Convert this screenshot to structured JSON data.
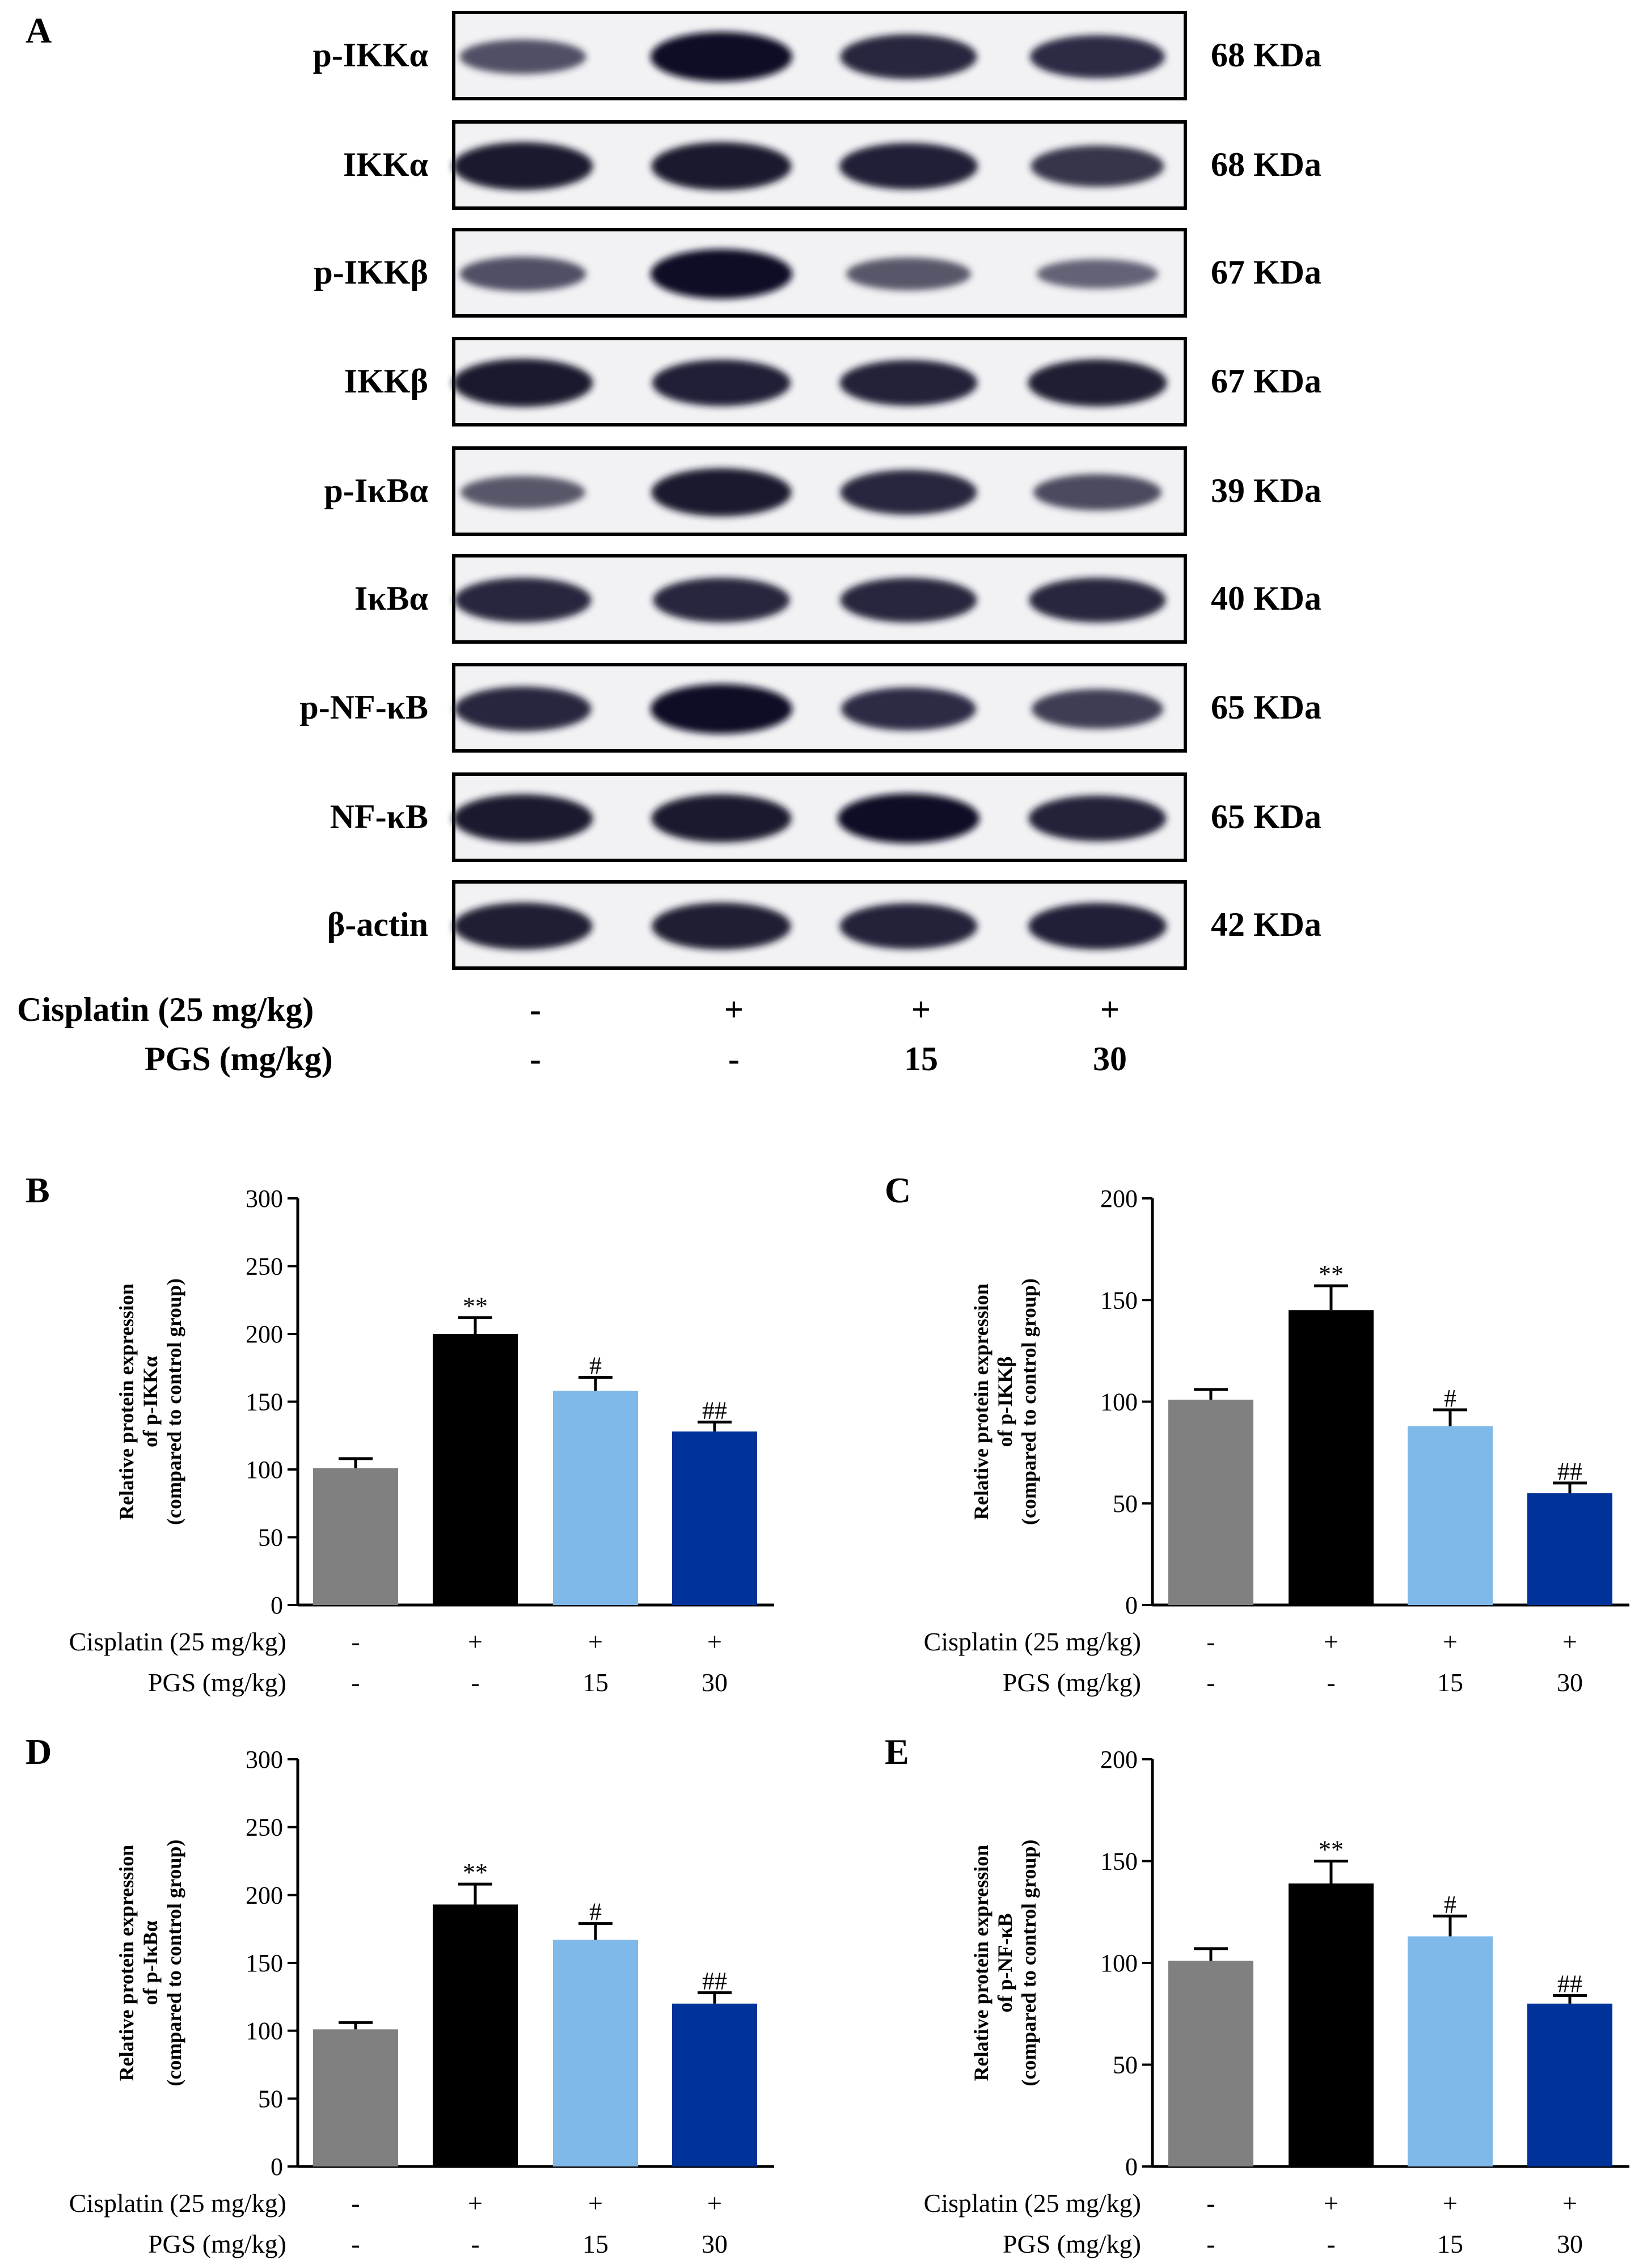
{
  "panel_a": {
    "letter": "A",
    "blots": [
      {
        "label": "p-IKKα",
        "kda": "68 KDa",
        "intensity": [
          0.55,
          1.0,
          0.85,
          0.8
        ]
      },
      {
        "label": "IKKα",
        "kda": "68 KDa",
        "intensity": [
          0.95,
          0.95,
          0.9,
          0.75
        ]
      },
      {
        "label": "p-IKKβ",
        "kda": "67 KDa",
        "intensity": [
          0.55,
          1.0,
          0.5,
          0.4
        ]
      },
      {
        "label": "IKKβ",
        "kda": "67 KDa",
        "intensity": [
          0.95,
          0.9,
          0.88,
          0.92
        ]
      },
      {
        "label": "p-IκBα",
        "kda": "39 KDa",
        "intensity": [
          0.5,
          0.95,
          0.85,
          0.6
        ]
      },
      {
        "label": "IκBα",
        "kda": "40 KDa",
        "intensity": [
          0.85,
          0.85,
          0.85,
          0.85
        ]
      },
      {
        "label": "p-NF-κB",
        "kda": "65 KDa",
        "intensity": [
          0.85,
          1.0,
          0.8,
          0.7
        ]
      },
      {
        "label": "NF-κB",
        "kda": "65 KDa",
        "intensity": [
          0.95,
          0.95,
          1.0,
          0.88
        ]
      },
      {
        "label": "β-actin",
        "kda": "42 KDa",
        "intensity": [
          0.92,
          0.92,
          0.88,
          0.9
        ]
      }
    ],
    "treatments": {
      "cisplatin_label": "Cisplatin (25 mg/kg)",
      "cisplatin_values": [
        "-",
        "+",
        "+",
        "+"
      ],
      "pgs_label": "PGS (mg/kg)",
      "pgs_values": [
        "-",
        "-",
        "15",
        "30"
      ]
    }
  },
  "colors": {
    "control": "#808080",
    "cisplatin": "#000000",
    "pgs15": "#7fb9ea",
    "pgs30": "#003399"
  },
  "chart_data": [
    {
      "panel": "B",
      "type": "bar",
      "ylabel": [
        "Relative protein expression",
        "of  p-IKKα",
        "(compared to control group)"
      ],
      "ylim": [
        0,
        300
      ],
      "yticks": [
        0,
        50,
        100,
        150,
        200,
        250,
        300
      ],
      "values": [
        101,
        200,
        158,
        128
      ],
      "errors": [
        7,
        12,
        10,
        7
      ],
      "sig": [
        "",
        "**",
        "#",
        "##"
      ],
      "cisplatin_label": "Cisplatin (25 mg/kg)",
      "cisplatin_values": [
        "-",
        "+",
        "+",
        "+"
      ],
      "pgs_label": "PGS (mg/kg)",
      "pgs_values": [
        "-",
        "-",
        "15",
        "30"
      ]
    },
    {
      "panel": "C",
      "type": "bar",
      "ylabel": [
        "Relative protein expression",
        "of  p-IKKβ",
        "(compared to control group)"
      ],
      "ylim": [
        0,
        200
      ],
      "yticks": [
        0,
        50,
        100,
        150,
        200
      ],
      "values": [
        101,
        145,
        88,
        55
      ],
      "errors": [
        5,
        12,
        8,
        5
      ],
      "sig": [
        "",
        "**",
        "#",
        "##"
      ],
      "cisplatin_label": "Cisplatin (25 mg/kg)",
      "cisplatin_values": [
        "-",
        "+",
        "+",
        "+"
      ],
      "pgs_label": "PGS (mg/kg)",
      "pgs_values": [
        "-",
        "-",
        "15",
        "30"
      ]
    },
    {
      "panel": "D",
      "type": "bar",
      "ylabel": [
        "Relative protein expression",
        "of  p-IκBα",
        "(compared to control group)"
      ],
      "ylim": [
        0,
        300
      ],
      "yticks": [
        0,
        50,
        100,
        150,
        200,
        250,
        300
      ],
      "values": [
        101,
        193,
        167,
        120
      ],
      "errors": [
        5,
        15,
        12,
        8
      ],
      "sig": [
        "",
        "**",
        "#",
        "##"
      ],
      "cisplatin_label": "Cisplatin (25 mg/kg)",
      "cisplatin_values": [
        "-",
        "+",
        "+",
        "+"
      ],
      "pgs_label": "PGS (mg/kg)",
      "pgs_values": [
        "-",
        "-",
        "15",
        "30"
      ]
    },
    {
      "panel": "E",
      "type": "bar",
      "ylabel": [
        "Relative protein expression",
        "of  p-NF-κB",
        "(compared to control group)"
      ],
      "ylim": [
        0,
        200
      ],
      "yticks": [
        0,
        50,
        100,
        150,
        200
      ],
      "values": [
        101,
        139,
        113,
        80
      ],
      "errors": [
        6,
        11,
        10,
        4
      ],
      "sig": [
        "",
        "**",
        "#",
        "##"
      ],
      "cisplatin_label": "Cisplatin (25 mg/kg)",
      "cisplatin_values": [
        "-",
        "+",
        "+",
        "+"
      ],
      "pgs_label": "PGS (mg/kg)",
      "pgs_values": [
        "-",
        "-",
        "15",
        "30"
      ]
    }
  ]
}
